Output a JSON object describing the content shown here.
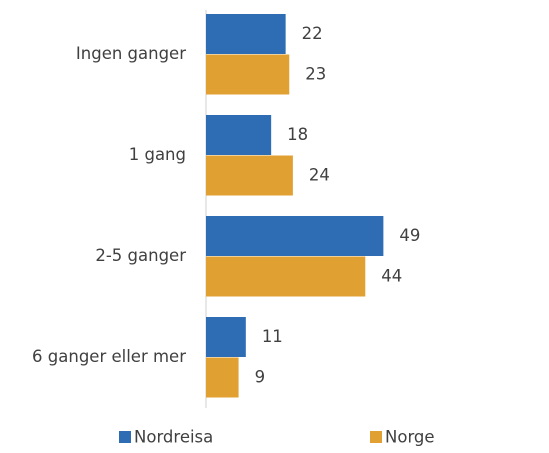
{
  "chart_data": {
    "type": "hbar",
    "categories": [
      "Ingen ganger",
      "1 gang",
      "2-5 ganger",
      "6 ganger eller mer"
    ],
    "series": [
      {
        "name": "Nordreisa",
        "color": "#2e6db4",
        "values": [
          22,
          18,
          49,
          11
        ]
      },
      {
        "name": "Norge",
        "color": "#e0a032",
        "values": [
          23,
          24,
          44,
          9
        ]
      }
    ],
    "legend": "bottom"
  }
}
